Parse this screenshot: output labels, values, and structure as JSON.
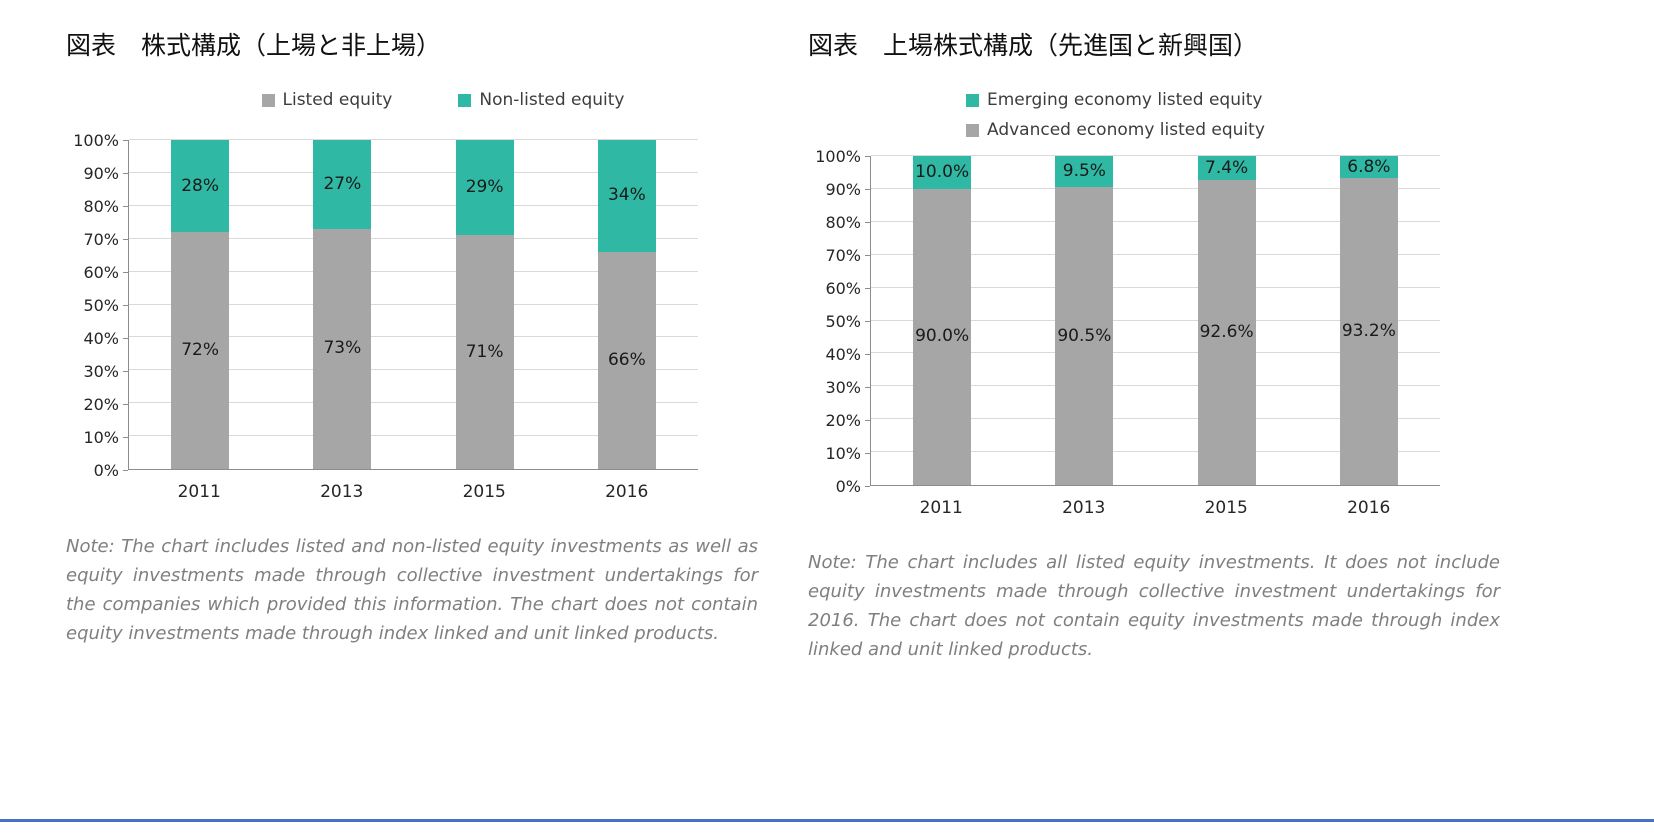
{
  "page": {
    "footer_rule_color": "#4472c4"
  },
  "colors": {
    "gray_series": "#a6a6a6",
    "teal_series": "#2fb8a3",
    "gridline": "#d9d9d9",
    "note_text": "#7f7f7f"
  },
  "chart_data": [
    {
      "id": "equity-composition-listed-vs-nonlisted",
      "type": "bar",
      "stacked": true,
      "title": "図表　株式構成（上場と非上場）",
      "categories": [
        "2011",
        "2013",
        "2015",
        "2016"
      ],
      "series": [
        {
          "name": "Listed equity",
          "color": "#a6a6a6",
          "values": [
            72,
            73,
            71,
            66
          ],
          "labels": [
            "72%",
            "73%",
            "71%",
            "66%"
          ]
        },
        {
          "name": "Non-listed equity",
          "color": "#2fb8a3",
          "values": [
            28,
            27,
            29,
            34
          ],
          "labels": [
            "28%",
            "27%",
            "29%",
            "34%"
          ]
        }
      ],
      "legend": [
        {
          "label": "Listed equity",
          "color": "#a6a6a6"
        },
        {
          "label": "Non-listed equity",
          "color": "#2fb8a3"
        }
      ],
      "legend_position": "top-horizontal",
      "y_axis": {
        "min": 0,
        "max": 100,
        "step": 10,
        "tick_labels": [
          "100%",
          "90%",
          "80%",
          "70%",
          "60%",
          "50%",
          "40%",
          "30%",
          "20%",
          "10%",
          "0%"
        ]
      },
      "grid": true,
      "note": "Note: The chart includes listed and non-listed equity investments as well as equity investments made through collective investment undertakings for the companies which provided this information. The chart does not contain equity investments made through index linked and unit linked products."
    },
    {
      "id": "listed-equity-advanced-vs-emerging",
      "type": "bar",
      "stacked": true,
      "title": "図表　上場株式構成（先進国と新興国）",
      "categories": [
        "2011",
        "2013",
        "2015",
        "2016"
      ],
      "series": [
        {
          "name": "Advanced economy listed equity",
          "color": "#a6a6a6",
          "values": [
            90.0,
            90.5,
            92.6,
            93.2
          ],
          "labels": [
            "90.0%",
            "90.5%",
            "92.6%",
            "93.2%"
          ]
        },
        {
          "name": "Emerging economy listed equity",
          "color": "#2fb8a3",
          "values": [
            10.0,
            9.5,
            7.4,
            6.8
          ],
          "labels": [
            "10.0%",
            "9.5%",
            "7.4%",
            "6.8%"
          ]
        }
      ],
      "legend": [
        {
          "label": "Emerging economy listed equity",
          "color": "#2fb8a3"
        },
        {
          "label": "Advanced economy listed equity",
          "color": "#a6a6a6"
        }
      ],
      "legend_position": "top-vertical",
      "y_axis": {
        "min": 0,
        "max": 100,
        "step": 10,
        "tick_labels": [
          "100%",
          "90%",
          "80%",
          "70%",
          "60%",
          "50%",
          "40%",
          "30%",
          "20%",
          "10%",
          "0%"
        ]
      },
      "grid": true,
      "note": "Note: The chart includes all listed equity investments. It does not include equity investments made through collective investment undertakings for 2016. The chart does not contain equity investments made through index linked and unit linked products."
    }
  ]
}
